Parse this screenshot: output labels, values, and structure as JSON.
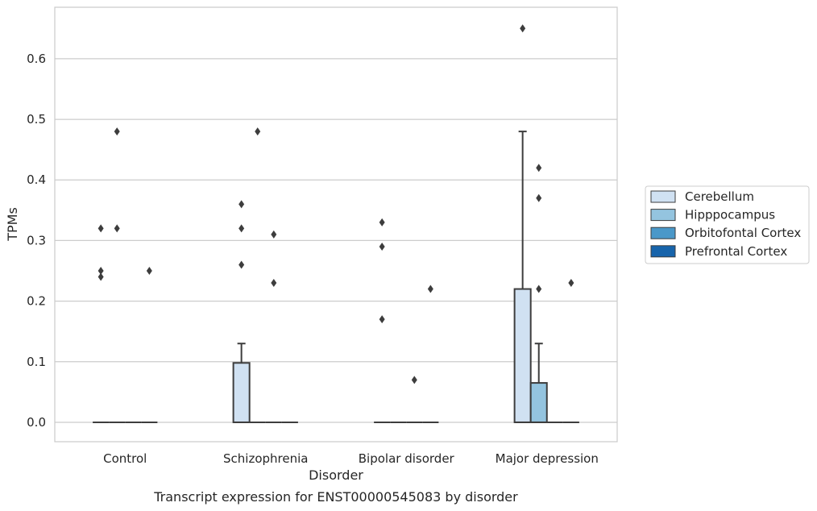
{
  "chart_data": {
    "type": "box",
    "title": "",
    "caption": "Transcript expression for ENST00000545083 by disorder",
    "xlabel": "Disorder",
    "ylabel": "TPMs",
    "ylim": [
      -0.032,
      0.685
    ],
    "yticks": [
      "0.0",
      "0.1",
      "0.2",
      "0.3",
      "0.4",
      "0.5",
      "0.6"
    ],
    "grid": "horizontal",
    "legend_position": "right",
    "categories": [
      "Control",
      "Schizophrenia",
      "Bipolar disorder",
      "Major depression"
    ],
    "series": [
      {
        "name": "Cerebellum",
        "color": "#d0e1f2",
        "boxes": [
          {
            "q1": 0,
            "median": 0,
            "q3": 0,
            "whisker_low": 0,
            "whisker_high": 0,
            "outliers": [
              0.24,
              0.25,
              0.32
            ]
          },
          {
            "q1": 0,
            "median": 0,
            "q3": 0.098,
            "whisker_low": 0,
            "whisker_high": 0.13,
            "outliers": [
              0.26,
              0.32,
              0.36
            ]
          },
          {
            "q1": 0,
            "median": 0,
            "q3": 0,
            "whisker_low": 0,
            "whisker_high": 0,
            "outliers": [
              0.17,
              0.29,
              0.33
            ]
          },
          {
            "q1": 0,
            "median": 0,
            "q3": 0.22,
            "whisker_low": 0,
            "whisker_high": 0.48,
            "outliers": [
              0.65
            ]
          }
        ]
      },
      {
        "name": "Hipppocampus",
        "color": "#94c4df",
        "boxes": [
          {
            "q1": 0,
            "median": 0,
            "q3": 0,
            "whisker_low": 0,
            "whisker_high": 0,
            "outliers": [
              0.32,
              0.48
            ]
          },
          {
            "q1": 0,
            "median": 0,
            "q3": 0,
            "whisker_low": 0,
            "whisker_high": 0,
            "outliers": [
              0.48
            ]
          },
          {
            "q1": 0,
            "median": 0,
            "q3": 0,
            "whisker_low": 0,
            "whisker_high": 0,
            "outliers": []
          },
          {
            "q1": 0,
            "median": 0,
            "q3": 0.065,
            "whisker_low": 0,
            "whisker_high": 0.13,
            "outliers": [
              0.22,
              0.37,
              0.42
            ]
          }
        ]
      },
      {
        "name": "Orbitofontal Cortex",
        "color": "#4a98c9",
        "boxes": [
          {
            "q1": 0,
            "median": 0,
            "q3": 0,
            "whisker_low": 0,
            "whisker_high": 0,
            "outliers": []
          },
          {
            "q1": 0,
            "median": 0,
            "q3": 0,
            "whisker_low": 0,
            "whisker_high": 0,
            "outliers": [
              0.23,
              0.31
            ]
          },
          {
            "q1": 0,
            "median": 0,
            "q3": 0,
            "whisker_low": 0,
            "whisker_high": 0,
            "outliers": [
              0.07
            ]
          },
          {
            "q1": 0,
            "median": 0,
            "q3": 0,
            "whisker_low": 0,
            "whisker_high": 0,
            "outliers": []
          }
        ]
      },
      {
        "name": "Prefrontal Cortex",
        "color": "#1764ab",
        "boxes": [
          {
            "q1": 0,
            "median": 0,
            "q3": 0,
            "whisker_low": 0,
            "whisker_high": 0,
            "outliers": [
              0.25
            ]
          },
          {
            "q1": 0,
            "median": 0,
            "q3": 0,
            "whisker_low": 0,
            "whisker_high": 0,
            "outliers": []
          },
          {
            "q1": 0,
            "median": 0,
            "q3": 0,
            "whisker_low": 0,
            "whisker_high": 0,
            "outliers": [
              0.22
            ]
          },
          {
            "q1": 0,
            "median": 0,
            "q3": 0,
            "whisker_low": 0,
            "whisker_high": 0,
            "outliers": [
              0.23
            ]
          }
        ]
      }
    ]
  }
}
